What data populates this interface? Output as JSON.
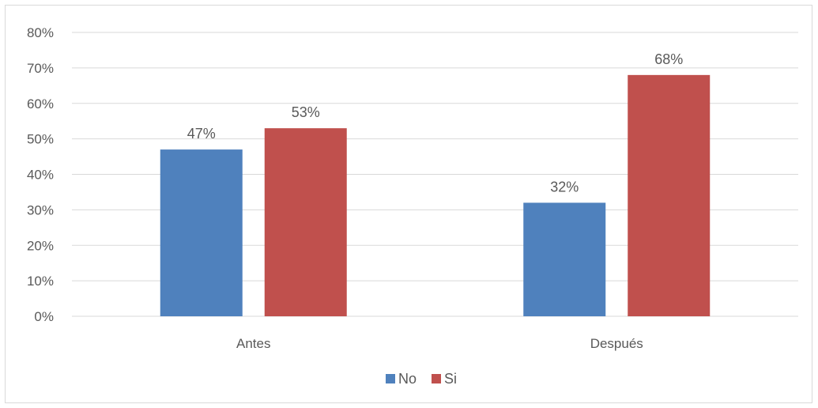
{
  "chart_data": {
    "type": "bar",
    "categories": [
      "Antes",
      "Después"
    ],
    "series": [
      {
        "name": "No",
        "values": [
          47,
          32
        ],
        "labels": [
          "47%",
          "32%"
        ],
        "color": "#4f81bd"
      },
      {
        "name": "Si",
        "values": [
          53,
          68
        ],
        "labels": [
          "53%",
          "68%"
        ],
        "color": "#c0504d"
      }
    ],
    "ylim": [
      0,
      80
    ],
    "yticks": [
      0,
      10,
      20,
      30,
      40,
      50,
      60,
      70,
      80
    ],
    "ytick_labels": [
      "0%",
      "10%",
      "20%",
      "30%",
      "40%",
      "50%",
      "60%",
      "70%",
      "80%"
    ],
    "grid": true,
    "legend": "bottom",
    "title": "",
    "xlabel": "",
    "ylabel": ""
  }
}
